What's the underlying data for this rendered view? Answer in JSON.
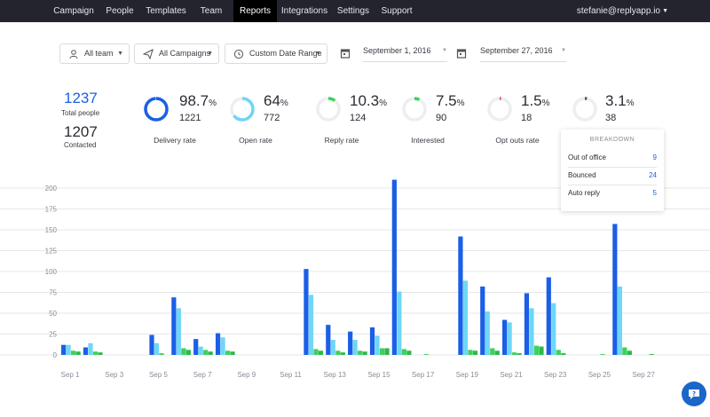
{
  "nav": {
    "items": [
      {
        "label": "Campaign",
        "active": false
      },
      {
        "label": "People",
        "active": false
      },
      {
        "label": "Templates",
        "active": false
      },
      {
        "label": "Team",
        "active": false
      },
      {
        "label": "Reports",
        "active": true
      },
      {
        "label": "Integrations",
        "active": false
      },
      {
        "label": "Settings",
        "active": false
      },
      {
        "label": "Support",
        "active": false
      }
    ],
    "user": "stefanie@replyapp.io"
  },
  "filters": {
    "team": "All team",
    "campaigns": "All Campaigns",
    "range": "Custom Date Range",
    "start_date": "September 1, 2016",
    "end_date": "September 27, 2016"
  },
  "totals": {
    "total_people": "1237",
    "total_people_label": "Total people",
    "contacted": "1207",
    "contacted_label": "Contacted"
  },
  "stats": [
    {
      "pct": "98.7",
      "count": "1221",
      "label": "Delivery rate",
      "fraction": 0.987,
      "color": "#1a5fe6"
    },
    {
      "pct": "64",
      "count": "772",
      "label": "Open rate",
      "fraction": 0.64,
      "color": "#6fd6f5"
    },
    {
      "pct": "10.3",
      "count": "124",
      "label": "Reply rate",
      "fraction": 0.103,
      "color": "#3ed15a"
    },
    {
      "pct": "7.5",
      "count": "90",
      "label": "Interested",
      "fraction": 0.075,
      "color": "#3ed15a"
    },
    {
      "pct": "1.5",
      "count": "18",
      "label": "Opt outs rate",
      "fraction": 0.015,
      "color": "#e8415a"
    },
    {
      "pct": "3.1",
      "count": "38",
      "label": "",
      "fraction": 0.031,
      "color": "#555555"
    }
  ],
  "pct_unit": "%",
  "breakdown": {
    "title": "BREAKDOWN",
    "rows": [
      {
        "label": "Out of office",
        "value": "9"
      },
      {
        "label": "Bounced",
        "value": "24"
      },
      {
        "label": "Auto reply",
        "value": "5"
      }
    ]
  },
  "chart_data": {
    "type": "bar",
    "ylim": [
      0,
      200
    ],
    "yticks": [
      0,
      25,
      50,
      75,
      100,
      125,
      150,
      175,
      200
    ],
    "grid": true,
    "categories": [
      "1",
      "2",
      "3",
      "4",
      "5",
      "6",
      "7",
      "8",
      "9",
      "10",
      "11",
      "12",
      "13",
      "14",
      "15",
      "16",
      "17",
      "18",
      "19",
      "20",
      "21",
      "22",
      "23",
      "24",
      "25",
      "26",
      "27"
    ],
    "xtick_labels": [
      "Sep 1",
      "Sep 3",
      "Sep 5",
      "Sep 7",
      "Sep 9",
      "Sep 11",
      "Sep 13",
      "Sep 15",
      "Sep 17",
      "Sep 19",
      "Sep 21",
      "Sep 23",
      "Sep 25",
      "Sep 27"
    ],
    "series": [
      {
        "color": "#1a5fe6",
        "values": [
          12,
          9,
          0,
          0,
          24,
          69,
          19,
          26,
          0,
          0,
          0,
          103,
          36,
          28,
          33,
          210,
          0,
          0,
          142,
          82,
          42,
          74,
          93,
          0,
          0,
          157,
          0
        ]
      },
      {
        "color": "#6fd6f5",
        "values": [
          12,
          14,
          0,
          0,
          14,
          56,
          10,
          21,
          0,
          0,
          0,
          72,
          18,
          18,
          23,
          76,
          0,
          0,
          89,
          52,
          39,
          56,
          62,
          0,
          0,
          82,
          0
        ]
      },
      {
        "color": "#3ed15a",
        "values": [
          5,
          4,
          0,
          0,
          2,
          8,
          6,
          5,
          0,
          0,
          0,
          7,
          5,
          5,
          8,
          7,
          1,
          0,
          6,
          8,
          3,
          11,
          6,
          0,
          1,
          9,
          0
        ]
      },
      {
        "color": "#2db84a",
        "values": [
          4,
          3,
          0,
          0,
          0,
          6,
          4,
          4,
          0,
          0,
          0,
          5,
          3,
          4,
          8,
          5,
          0,
          0,
          5,
          5,
          2,
          10,
          2,
          0,
          0,
          5,
          1
        ]
      }
    ]
  }
}
